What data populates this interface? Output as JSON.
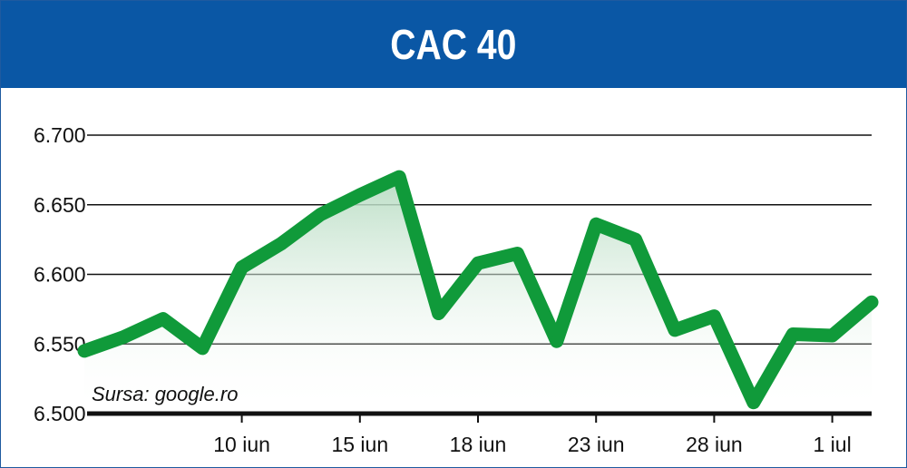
{
  "chart_data": {
    "type": "line",
    "title": "CAC 40",
    "source": "Sursa: google.ro",
    "ylim": [
      6500,
      6700
    ],
    "ytick_labels": [
      "6.700",
      "6.650",
      "6.600",
      "6.550",
      "6.500"
    ],
    "ytick_values": [
      6700,
      6650,
      6600,
      6550,
      6500
    ],
    "xtick_labels": [
      "10 iun",
      "15 iun",
      "18 iun",
      "23 iun",
      "28 iun",
      "1 iul"
    ],
    "xtick_index": [
      4,
      7,
      10,
      13,
      16,
      19
    ],
    "series": [
      {
        "values": [
          6545,
          6555,
          6568,
          6547,
          6605,
          6622,
          6643,
          6657,
          6670,
          6572,
          6608,
          6615,
          6552,
          6636,
          6625,
          6560,
          6570,
          6508,
          6557,
          6556,
          6580
        ]
      }
    ],
    "grid": true,
    "colors": {
      "line": "#109a3a",
      "fill": "#cfe9d6",
      "title_bg": "#0a57a5",
      "grid": "#111111"
    }
  }
}
